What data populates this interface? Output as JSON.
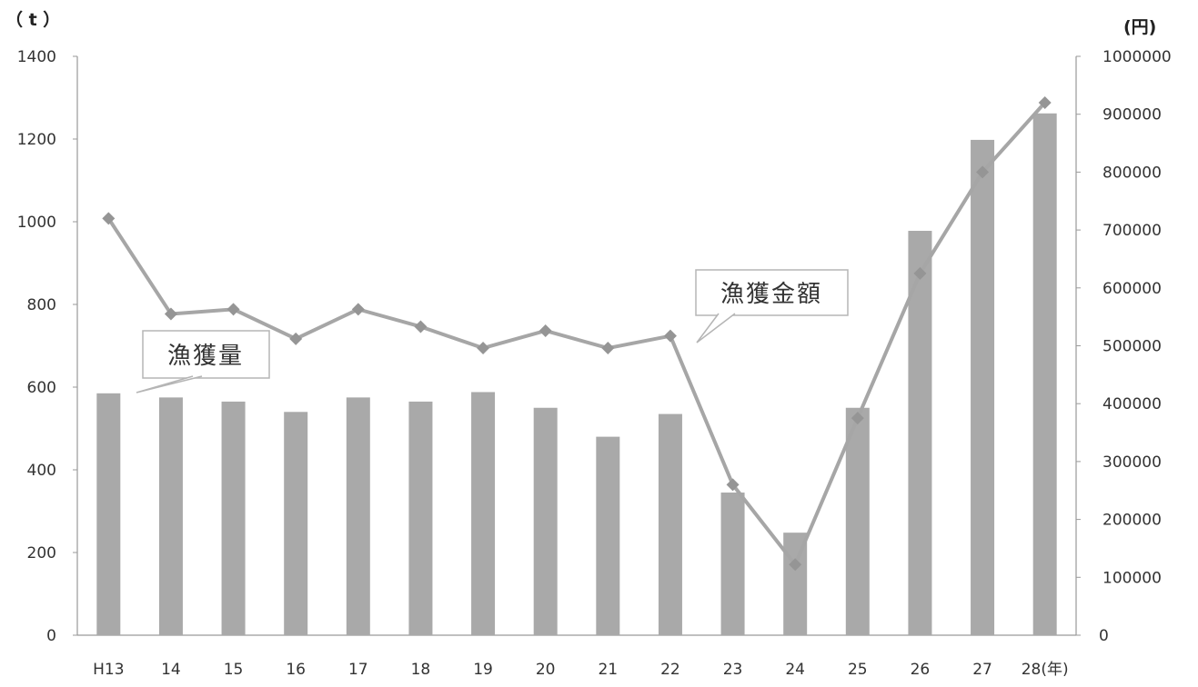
{
  "chart_data": {
    "type": "bar",
    "categories": [
      "H13",
      "14",
      "15",
      "16",
      "17",
      "18",
      "19",
      "20",
      "21",
      "22",
      "23",
      "24",
      "25",
      "26",
      "27",
      "28(年)"
    ],
    "series": [
      {
        "name": "漁獲量",
        "type": "bar",
        "axis": "left",
        "values": [
          585,
          575,
          565,
          540,
          575,
          565,
          588,
          550,
          480,
          535,
          345,
          248,
          550,
          978,
          1198,
          1262
        ],
        "color": "#a9a9a9"
      },
      {
        "name": "漁獲金額",
        "type": "line",
        "axis": "right",
        "values": [
          720000,
          555000,
          563000,
          512000,
          563000,
          533000,
          496000,
          526000,
          496000,
          517000,
          260000,
          122000,
          375000,
          625000,
          800000,
          920000
        ],
        "color": "#a6a6a6"
      }
    ],
    "y_left": {
      "unit": "（ t ）",
      "ylim": [
        0,
        1400
      ],
      "ticks": [
        "0",
        "200",
        "400",
        "600",
        "800",
        "1000",
        "1200",
        "1400"
      ]
    },
    "y_right": {
      "unit": "(円)",
      "ylim": [
        0,
        1000000
      ],
      "ticks": [
        "0",
        "100000",
        "200000",
        "300000",
        "400000",
        "500000",
        "600000",
        "700000",
        "800000",
        "900000",
        "1000000"
      ]
    },
    "annotations": {
      "bar_label": "漁獲量",
      "line_label": "漁獲金額"
    },
    "legend": "none",
    "grid": false
  }
}
